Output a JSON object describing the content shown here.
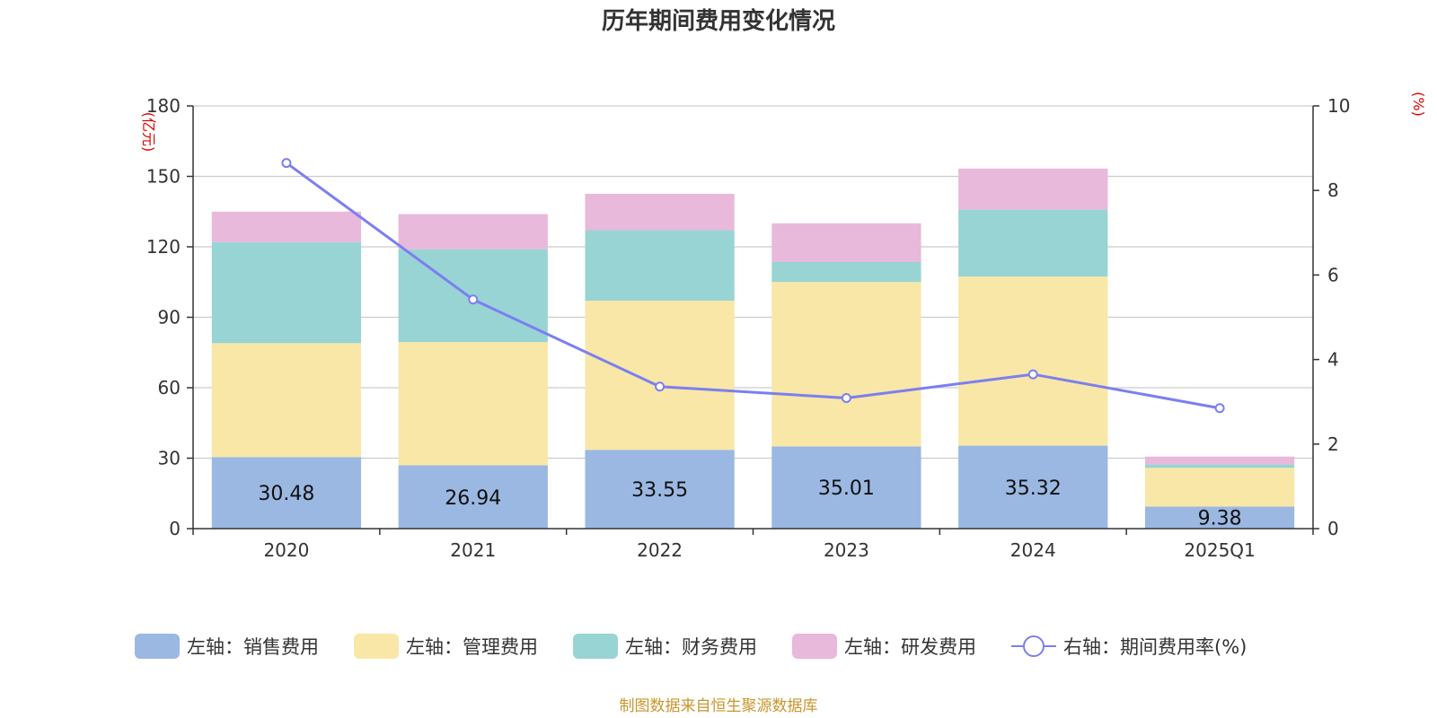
{
  "chart_data": {
    "type": "bar",
    "title": "历年期间费用变化情况",
    "categories": [
      "2020",
      "2021",
      "2022",
      "2023",
      "2024",
      "2025Q1"
    ],
    "left_axis": {
      "unit": "(亿元)",
      "ylim": [
        0,
        180
      ],
      "ticks": [
        "0",
        "30",
        "60",
        "90",
        "120",
        "150",
        "180"
      ]
    },
    "right_axis": {
      "unit": "(%)",
      "ylim": [
        0,
        10
      ],
      "ticks": [
        "0",
        "2",
        "4",
        "6",
        "8",
        "10"
      ]
    },
    "series": [
      {
        "name": "左轴：销售费用",
        "type": "bar",
        "stack": true,
        "axis": "left",
        "color": "#9bb8e2",
        "values": [
          30.48,
          26.94,
          33.55,
          35.01,
          35.32,
          9.38
        ],
        "labels": [
          "30.48",
          "26.94",
          "33.55",
          "35.01",
          "35.32",
          "9.38"
        ]
      },
      {
        "name": "左轴：管理费用",
        "type": "bar",
        "stack": true,
        "axis": "left",
        "color": "#f8e7a7",
        "values": [
          48.5,
          52.5,
          63.5,
          70.0,
          72.0,
          16.5
        ]
      },
      {
        "name": "左轴：财务费用",
        "type": "bar",
        "stack": true,
        "axis": "left",
        "color": "#98d4d4",
        "values": [
          43.0,
          39.5,
          30.0,
          8.5,
          28.5,
          1.5
        ]
      },
      {
        "name": "左轴：研发费用",
        "type": "bar",
        "stack": true,
        "axis": "left",
        "color": "#e8b9da",
        "values": [
          13.0,
          15.0,
          15.5,
          16.5,
          17.5,
          3.3
        ]
      },
      {
        "name": "右轴：期间费用率(%)",
        "type": "line",
        "axis": "right",
        "color": "#7b7ff0",
        "values": [
          8.65,
          5.42,
          3.36,
          3.09,
          3.65,
          2.85
        ]
      }
    ],
    "grid": true,
    "legend_position": "bottom"
  },
  "source_note": "制图数据来自恒生聚源数据库"
}
